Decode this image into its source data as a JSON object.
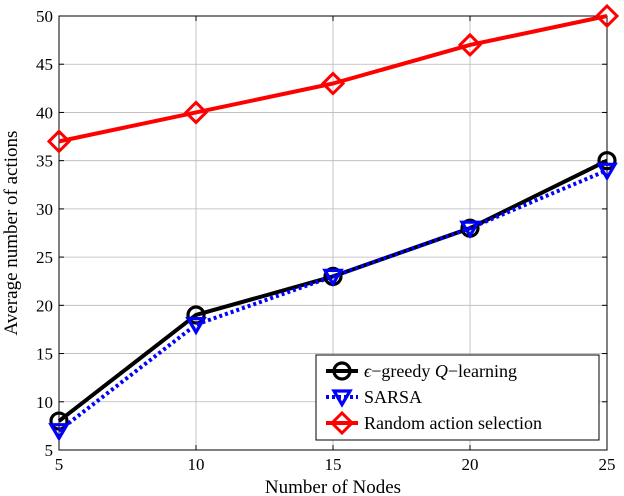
{
  "chart_data": {
    "type": "line",
    "title": "",
    "xlabel": "Number of Nodes",
    "ylabel": "Average number of actions",
    "x": [
      5,
      10,
      15,
      20,
      25
    ],
    "xticks": [
      5,
      10,
      15,
      20,
      25
    ],
    "yticks": [
      5,
      10,
      15,
      20,
      25,
      30,
      35,
      40,
      45,
      50
    ],
    "xlim": [
      5,
      25
    ],
    "ylim": [
      5,
      50
    ],
    "grid": true,
    "legend_position": "bottom-right",
    "series": [
      {
        "name": "ϵ−greedy Q−learning",
        "legend_parts": [
          "ϵ",
          "−greedy ",
          "Q",
          "−learning"
        ],
        "values": [
          8,
          19,
          23,
          28,
          35
        ],
        "color": "#000000",
        "line_style": "solid",
        "marker": "circle"
      },
      {
        "name": "SARSA",
        "values": [
          7,
          18,
          23,
          28,
          34
        ],
        "color": "#0000ff",
        "line_style": "dotted",
        "marker": "triangle-down"
      },
      {
        "name": "Random action selection",
        "values": [
          37,
          40,
          43,
          47,
          50
        ],
        "color": "#ff0000",
        "line_style": "solid",
        "marker": "diamond"
      }
    ]
  }
}
